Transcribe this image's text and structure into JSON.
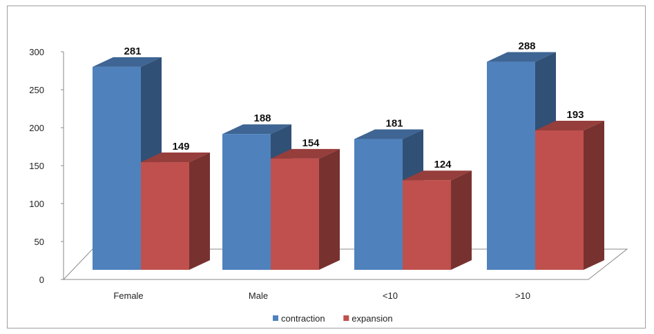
{
  "chart_data": {
    "type": "bar",
    "categories": [
      "Female",
      "Male",
      "<10",
      ">10"
    ],
    "series": [
      {
        "name": "contraction",
        "values": [
          281,
          188,
          181,
          288
        ],
        "color": "#4f81bd"
      },
      {
        "name": "expansion",
        "values": [
          149,
          154,
          124,
          193
        ],
        "color": "#c0504d"
      }
    ],
    "ylim": [
      0,
      300
    ],
    "yticks": [
      0,
      50,
      100,
      150,
      200,
      250,
      300
    ],
    "grid": false,
    "legend_position": "bottom",
    "style": "3d-clustered-column"
  }
}
